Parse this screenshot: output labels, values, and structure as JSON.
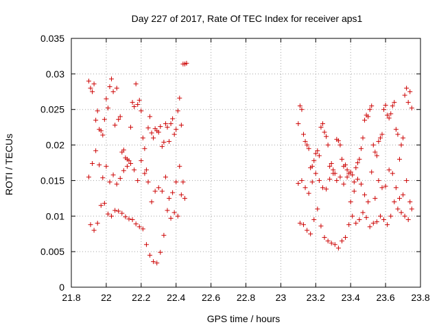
{
  "chart_data": {
    "type": "scatter",
    "title": "Day 227 of 2017, Rate Of TEC Index for receiver aps1",
    "xlabel": "GPS time / hours",
    "ylabel": "ROTI / TECUs",
    "xlim": [
      21.8,
      23.8
    ],
    "ylim": [
      0,
      0.035
    ],
    "xticks": [
      "21.8",
      "22",
      "22.2",
      "22.4",
      "22.6",
      "22.8",
      "23",
      "23.2",
      "23.4",
      "23.6",
      "23.8"
    ],
    "yticks": [
      "0",
      "0.005",
      "0.01",
      "0.015",
      "0.02",
      "0.025",
      "0.03",
      "0.035"
    ],
    "grid": true,
    "marker": "+",
    "series": [
      {
        "name": "ROTI",
        "color": "#cc0000",
        "x": [
          21.9,
          21.91,
          21.92,
          21.93,
          21.94,
          21.95,
          21.96,
          21.97,
          21.98,
          21.99,
          22.0,
          22.01,
          22.02,
          22.03,
          22.04,
          22.05,
          22.06,
          22.07,
          22.08,
          22.09,
          22.1,
          22.11,
          22.12,
          22.13,
          22.14,
          22.15,
          22.16,
          22.17,
          22.18,
          22.19,
          22.2,
          22.21,
          22.22,
          22.23,
          22.24,
          22.25,
          22.26,
          22.27,
          22.28,
          22.29,
          22.3,
          22.31,
          22.32,
          22.33,
          22.34,
          22.35,
          22.36,
          22.37,
          22.38,
          22.39,
          22.4,
          22.41,
          22.42,
          22.43,
          22.44,
          22.45,
          22.46,
          21.9,
          21.92,
          21.94,
          21.96,
          21.98,
          22.0,
          22.02,
          22.04,
          22.06,
          22.08,
          22.1,
          22.12,
          22.14,
          22.16,
          22.18,
          22.2,
          22.22,
          22.24,
          22.26,
          22.28,
          22.3,
          22.32,
          22.34,
          22.36,
          22.38,
          22.4,
          22.42,
          22.44,
          21.91,
          21.93,
          21.95,
          21.97,
          21.99,
          22.01,
          22.03,
          22.05,
          22.07,
          22.09,
          22.11,
          22.13,
          22.15,
          22.17,
          22.19,
          22.21,
          22.23,
          22.25,
          22.27,
          22.29,
          22.31,
          22.33,
          22.35,
          22.37,
          22.39,
          22.41,
          22.43,
          22.45,
          23.1,
          23.11,
          23.12,
          23.13,
          23.14,
          23.15,
          23.16,
          23.17,
          23.18,
          23.19,
          23.2,
          23.21,
          23.22,
          23.23,
          23.24,
          23.25,
          23.26,
          23.27,
          23.28,
          23.29,
          23.3,
          23.31,
          23.32,
          23.33,
          23.34,
          23.35,
          23.36,
          23.37,
          23.38,
          23.39,
          23.4,
          23.41,
          23.42,
          23.43,
          23.44,
          23.45,
          23.46,
          23.47,
          23.48,
          23.49,
          23.5,
          23.51,
          23.52,
          23.53,
          23.54,
          23.55,
          23.56,
          23.57,
          23.58,
          23.59,
          23.6,
          23.61,
          23.62,
          23.63,
          23.64,
          23.65,
          23.66,
          23.67,
          23.68,
          23.69,
          23.7,
          23.71,
          23.72,
          23.73,
          23.74,
          23.75,
          23.1,
          23.12,
          23.14,
          23.16,
          23.18,
          23.2,
          23.22,
          23.24,
          23.26,
          23.28,
          23.3,
          23.32,
          23.34,
          23.36,
          23.38,
          23.4,
          23.42,
          23.44,
          23.46,
          23.48,
          23.5,
          23.52,
          23.54,
          23.56,
          23.58,
          23.6,
          23.62,
          23.64,
          23.66,
          23.68,
          23.7,
          23.72,
          23.74,
          23.11,
          23.13,
          23.15,
          23.17,
          23.19,
          23.21,
          23.23,
          23.25,
          23.27,
          23.29,
          23.31,
          23.33,
          23.35,
          23.37,
          23.39,
          23.41,
          23.43,
          23.45,
          23.47,
          23.49,
          23.51,
          23.53,
          23.55,
          23.57,
          23.59,
          23.61,
          23.63,
          23.65,
          23.67,
          23.69,
          23.71,
          23.73,
          23.75
        ],
        "y": [
          0.029,
          0.028,
          0.0275,
          0.0286,
          0.0235,
          0.0248,
          0.0222,
          0.022,
          0.0214,
          0.0236,
          0.0265,
          0.0252,
          0.0282,
          0.0293,
          0.0275,
          0.0228,
          0.028,
          0.0236,
          0.024,
          0.019,
          0.0193,
          0.0182,
          0.018,
          0.0178,
          0.0225,
          0.026,
          0.0254,
          0.0286,
          0.0257,
          0.0263,
          0.0248,
          0.021,
          0.0195,
          0.0165,
          0.0224,
          0.024,
          0.0217,
          0.021,
          0.0223,
          0.022,
          0.0218,
          0.0226,
          0.0198,
          0.0204,
          0.023,
          0.0225,
          0.0205,
          0.023,
          0.0237,
          0.0215,
          0.0222,
          0.0248,
          0.0266,
          0.0228,
          0.0314,
          0.0314,
          0.0315,
          0.0155,
          0.0174,
          0.0192,
          0.0172,
          0.0154,
          0.017,
          0.0148,
          0.0158,
          0.0145,
          0.0153,
          0.0164,
          0.017,
          0.0174,
          0.0165,
          0.015,
          0.0178,
          0.016,
          0.0148,
          0.012,
          0.0135,
          0.014,
          0.0135,
          0.0155,
          0.0125,
          0.0133,
          0.0148,
          0.017,
          0.0148,
          0.0088,
          0.008,
          0.009,
          0.0115,
          0.0118,
          0.0103,
          0.01,
          0.0108,
          0.0107,
          0.0104,
          0.0099,
          0.0096,
          0.0095,
          0.0089,
          0.0085,
          0.0082,
          0.006,
          0.0045,
          0.0036,
          0.0034,
          0.0049,
          0.0073,
          0.0108,
          0.0097,
          0.0105,
          0.01,
          0.013,
          0.0125,
          0.023,
          0.0255,
          0.025,
          0.0215,
          0.0205,
          0.02,
          0.0195,
          0.0168,
          0.017,
          0.0178,
          0.0188,
          0.0192,
          0.0185,
          0.0225,
          0.023,
          0.0218,
          0.0212,
          0.02,
          0.017,
          0.0174,
          0.0165,
          0.016,
          0.0208,
          0.0206,
          0.02,
          0.018,
          0.017,
          0.0172,
          0.0165,
          0.016,
          0.0162,
          0.0158,
          0.0148,
          0.0168,
          0.0175,
          0.018,
          0.0195,
          0.021,
          0.0235,
          0.0242,
          0.024,
          0.025,
          0.0255,
          0.02,
          0.019,
          0.0185,
          0.0205,
          0.021,
          0.0215,
          0.025,
          0.0256,
          0.0242,
          0.0238,
          0.0244,
          0.0255,
          0.026,
          0.0222,
          0.0215,
          0.018,
          0.02,
          0.021,
          0.027,
          0.028,
          0.026,
          0.0275,
          0.0252,
          0.0146,
          0.015,
          0.014,
          0.0132,
          0.0148,
          0.016,
          0.015,
          0.014,
          0.0138,
          0.0152,
          0.016,
          0.015,
          0.0155,
          0.0145,
          0.0155,
          0.012,
          0.0135,
          0.0152,
          0.0145,
          0.013,
          0.012,
          0.0162,
          0.0125,
          0.015,
          0.014,
          0.0142,
          0.0165,
          0.016,
          0.014,
          0.0125,
          0.013,
          0.015,
          0.012,
          0.009,
          0.0088,
          0.008,
          0.0075,
          0.0095,
          0.011,
          0.0086,
          0.007,
          0.0065,
          0.0062,
          0.006,
          0.0055,
          0.0065,
          0.007,
          0.0088,
          0.01,
          0.009,
          0.0095,
          0.0105,
          0.0098,
          0.0085,
          0.009,
          0.0092,
          0.01,
          0.0095,
          0.0088,
          0.01,
          0.012,
          0.011,
          0.0105,
          0.01,
          0.0095,
          0.011
        ]
      }
    ]
  }
}
